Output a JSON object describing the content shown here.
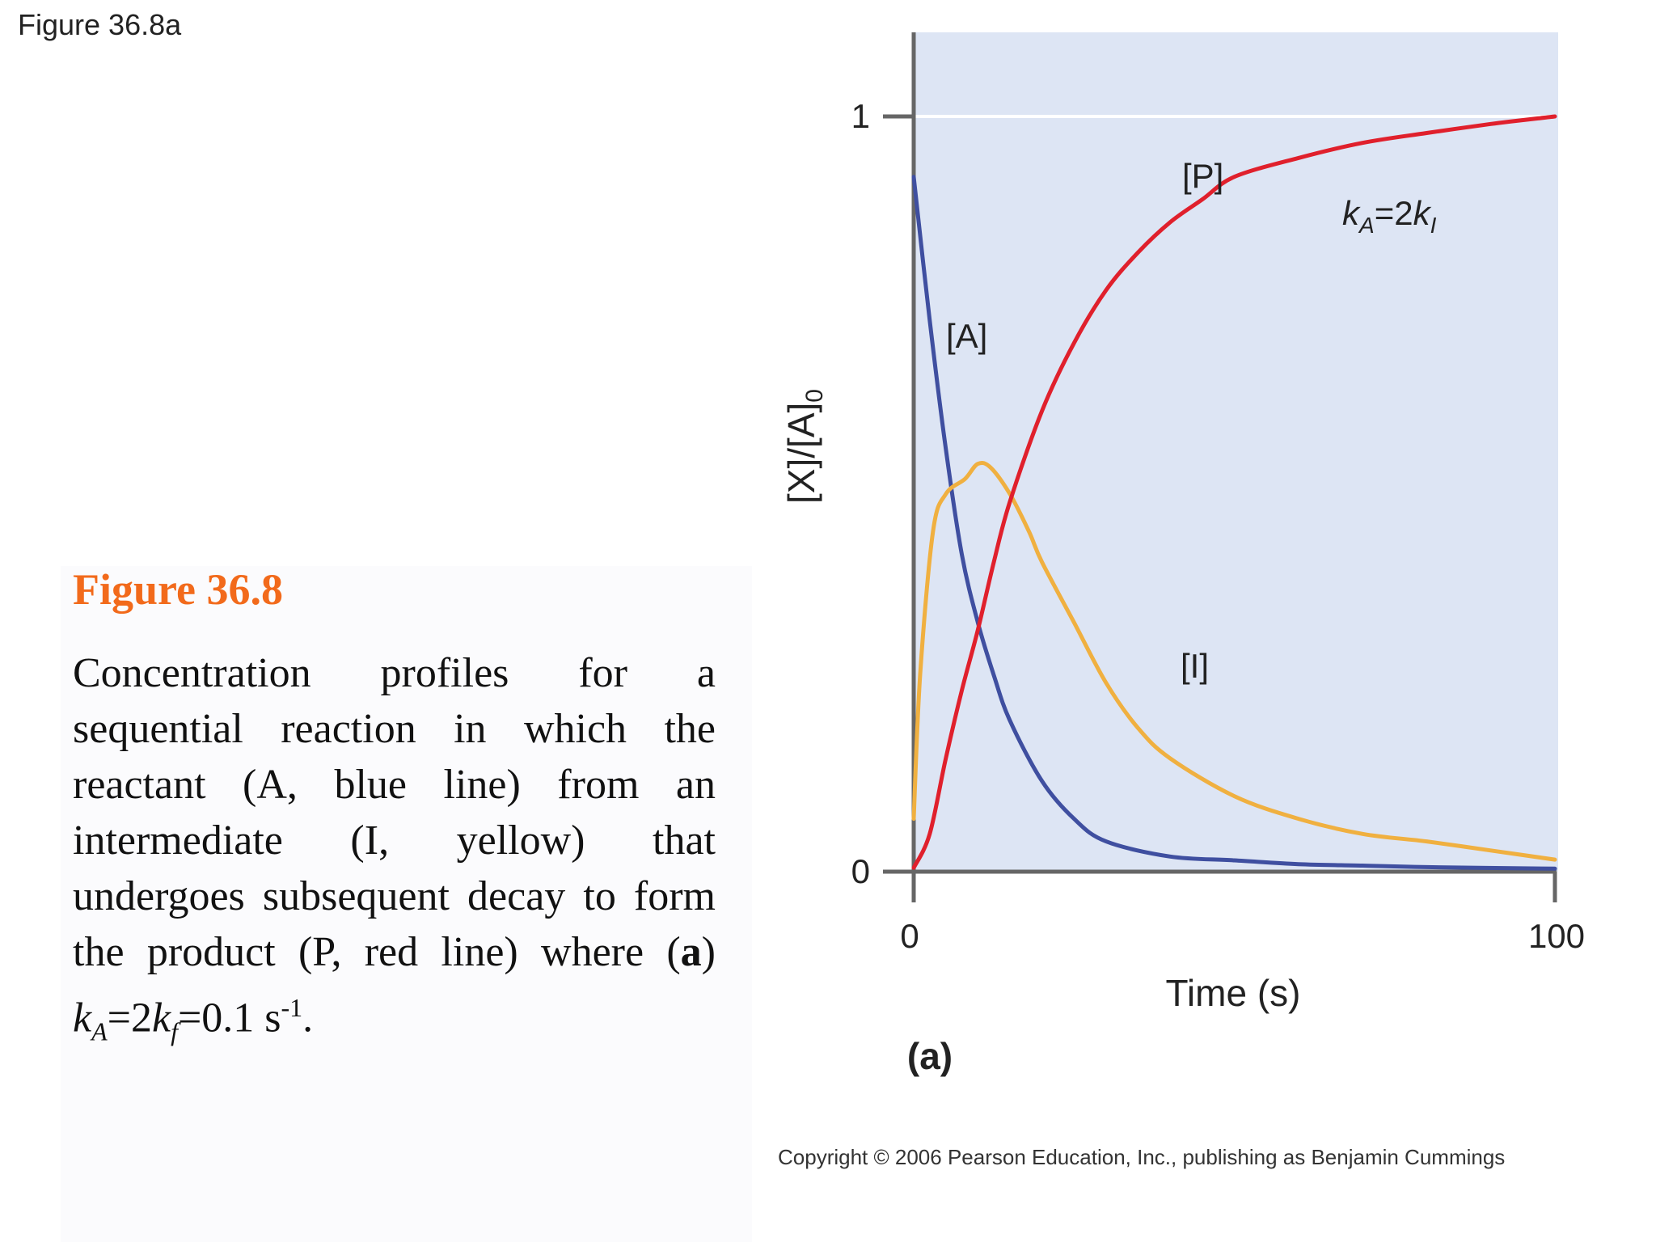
{
  "slide_label": "Figure 36.8a",
  "caption": {
    "heading": "Figure 36.8",
    "body": "Concentration profiles for a sequential reaction in which the reactant (A, blue line) from an intermediate (I, yellow) that undergoes subsequent decay to form the product (P, red line) where",
    "formula": {
      "part_label": "a",
      "k_a": "k",
      "k_a_sub": "A",
      "mid": "=2",
      "k_f": "k",
      "k_f_sub": "f",
      "value": "=0.1 s",
      "exponent": "-1",
      "end": "."
    }
  },
  "copyright": "Copyright © 2006 Pearson Education, Inc., publishing as Benjamin Cummings",
  "chart_data": {
    "type": "line",
    "title": "",
    "xlabel": "Time (s)",
    "ylabel": "[X]/[A]",
    "ylabel_sub": "0",
    "panel_label": "(a)",
    "annotation": {
      "k": "k",
      "k_sub_a": "A",
      "eq": "=2",
      "k2": "k",
      "k_sub_i": "I"
    },
    "xlim": [
      0,
      100
    ],
    "ylim": [
      0,
      1
    ],
    "x_ticks": [
      "0",
      "100"
    ],
    "y_ticks": [
      "0",
      "1"
    ],
    "background": "#dde5f4",
    "series": [
      {
        "name": "[A]",
        "color": "#3f4fa0",
        "x": [
          0,
          2.5,
          5,
          7.5,
          10,
          12.5,
          15,
          20,
          25,
          30,
          40,
          50,
          60,
          70,
          80,
          100
        ],
        "y": [
          0.92,
          0.73,
          0.56,
          0.42,
          0.33,
          0.26,
          0.2,
          0.12,
          0.07,
          0.04,
          0.02,
          0.015,
          0.01,
          0.008,
          0.006,
          0.004
        ]
      },
      {
        "name": "[I]",
        "color": "#f0b040",
        "x": [
          0,
          1,
          3,
          5,
          8,
          10,
          12,
          15,
          18,
          20,
          25,
          30,
          35,
          40,
          50,
          60,
          70,
          80,
          90,
          100
        ],
        "y": [
          0.07,
          0.26,
          0.45,
          0.5,
          0.52,
          0.54,
          0.535,
          0.5,
          0.45,
          0.41,
          0.33,
          0.25,
          0.19,
          0.15,
          0.1,
          0.07,
          0.05,
          0.04,
          0.028,
          0.016
        ]
      },
      {
        "name": "[P]",
        "color": "#e0202c",
        "x": [
          0,
          2.5,
          5,
          7.5,
          10,
          12.5,
          15,
          20,
          25,
          30,
          35,
          40,
          45,
          50,
          60,
          70,
          80,
          90,
          100
        ],
        "y": [
          0.005,
          0.05,
          0.15,
          0.24,
          0.32,
          0.41,
          0.49,
          0.61,
          0.7,
          0.77,
          0.82,
          0.86,
          0.89,
          0.92,
          0.945,
          0.965,
          0.978,
          0.99,
          1.0
        ]
      }
    ]
  }
}
